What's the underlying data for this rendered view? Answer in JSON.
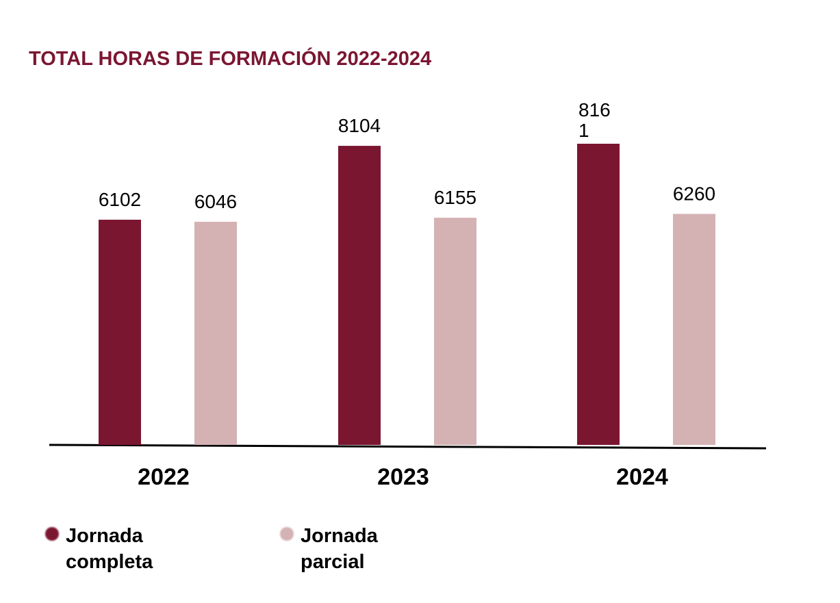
{
  "chart_data": {
    "type": "bar",
    "title": "TOTAL HORAS DE FORMACIÓN 2022-2024",
    "categories": [
      "2022",
      "2023",
      "2024"
    ],
    "series": [
      {
        "name": "Jornada completa",
        "values": [
          6102,
          8104,
          8161
        ],
        "labels": [
          "6102",
          "8104",
          "816\n1"
        ],
        "color": "#7b1631"
      },
      {
        "name": "Jornada parcial",
        "values": [
          6046,
          6155,
          6260
        ],
        "labels": [
          "6046",
          "6155",
          "6260"
        ],
        "color": "#d4b1b3"
      }
    ],
    "ylim": [
      0,
      9000
    ],
    "xlabel": "",
    "ylabel": "",
    "grid": false,
    "legend_position": "bottom-left"
  }
}
